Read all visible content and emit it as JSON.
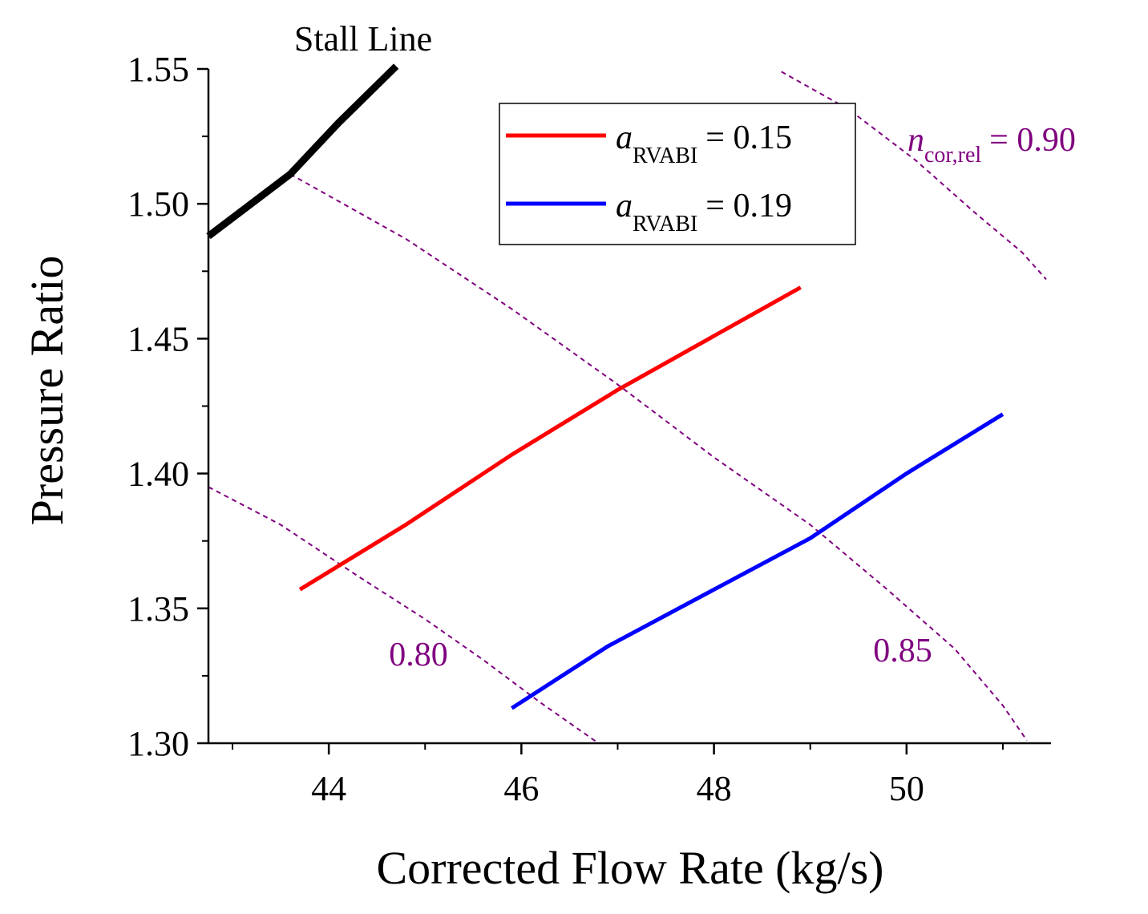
{
  "chart_data": {
    "type": "line",
    "title": "",
    "xlabel": "Corrected Flow Rate (kg/s)",
    "ylabel": "Pressure Ratio",
    "xlim": [
      42.75,
      51.5
    ],
    "ylim": [
      1.3,
      1.55
    ],
    "grid": false,
    "x_ticks": [
      44,
      46,
      48,
      50
    ],
    "x_tick_labels": [
      "44",
      "46",
      "48",
      "50"
    ],
    "y_ticks": [
      1.3,
      1.35,
      1.4,
      1.45,
      1.5,
      1.55
    ],
    "y_tick_labels": [
      "1.30",
      "1.35",
      "1.40",
      "1.45",
      "1.50",
      "1.55"
    ],
    "legend_position": "top-center",
    "series": [
      {
        "name": "a_RVABI = 0.15",
        "legend_symbol": "a",
        "legend_subscript": "RVABI",
        "legend_value": "= 0.15",
        "color": "#ff0000",
        "x": [
          43.7,
          44.8,
          45.9,
          47.0,
          48.0,
          48.9
        ],
        "y": [
          1.357,
          1.381,
          1.407,
          1.431,
          1.451,
          1.469
        ]
      },
      {
        "name": "a_RVABI = 0.19",
        "legend_symbol": "a",
        "legend_subscript": "RVABI",
        "legend_value": "= 0.19",
        "color": "#0000ff",
        "x": [
          45.9,
          46.9,
          48.0,
          49.0,
          50.0,
          51.0
        ],
        "y": [
          1.313,
          1.336,
          1.357,
          1.376,
          1.4,
          1.422
        ]
      }
    ],
    "stall_line": {
      "label": "Stall Line",
      "color": "#000000",
      "x": [
        42.75,
        43.6,
        44.1,
        44.7
      ],
      "y": [
        1.488,
        1.511,
        1.53,
        1.551
      ]
    },
    "speed_lines": [
      {
        "label": "0.80",
        "color": "#800080",
        "x": [
          42.75,
          43.5,
          44.3,
          45.0,
          45.6,
          46.2,
          46.8
        ],
        "y": [
          1.395,
          1.381,
          1.362,
          1.346,
          1.331,
          1.315,
          1.3
        ]
      },
      {
        "label": "0.85",
        "color": "#800080",
        "x": [
          43.6,
          44.8,
          45.9,
          47.0,
          48.0,
          49.0,
          49.8,
          50.5,
          51.0,
          51.25
        ],
        "y": [
          1.511,
          1.487,
          1.461,
          1.433,
          1.406,
          1.381,
          1.357,
          1.335,
          1.314,
          1.301
        ]
      },
      {
        "label_symbol": "n",
        "label_subscript": "cor,rel",
        "label": "= 0.90",
        "color": "#800080",
        "x": [
          48.7,
          49.4,
          50.1,
          50.7,
          51.2,
          51.45
        ],
        "y": [
          1.549,
          1.535,
          1.516,
          1.497,
          1.482,
          1.472
        ]
      }
    ]
  }
}
